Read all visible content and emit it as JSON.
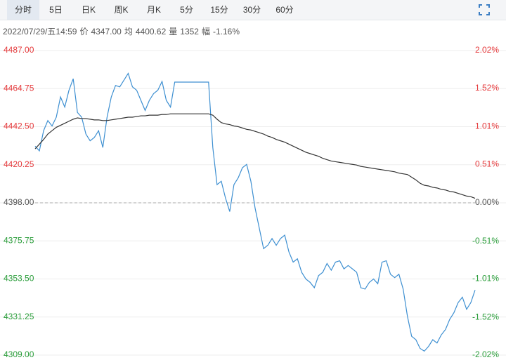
{
  "toolbar": {
    "tabs": [
      "分时",
      "5日",
      "日K",
      "周K",
      "月K",
      "5分",
      "15分",
      "30分",
      "60分"
    ],
    "selected": 0
  },
  "info": {
    "time": "2022/07/29/五14:59",
    "price_label": "价",
    "price": "4347.00",
    "avg_label": "均",
    "avg": "4400.62",
    "volume_label": "量",
    "volume": 1352,
    "range_label": "幅",
    "range": "-1.16%"
  },
  "chart_data": {
    "type": "line",
    "ylim": [
      4309,
      4487
    ],
    "yticks": [
      {
        "value": 4487,
        "label": "4487.00"
      },
      {
        "value": 4464.75,
        "label": "4464.75"
      },
      {
        "value": 4442.5,
        "label": "4442.50"
      },
      {
        "value": 4420.25,
        "label": "4420.25"
      },
      {
        "value": 4398,
        "label": "4398.00"
      },
      {
        "value": 4375.75,
        "label": "4375.75"
      },
      {
        "value": 4353.5,
        "label": "4353.50"
      },
      {
        "value": 4331.25,
        "label": "4331.25"
      },
      {
        "value": 4309,
        "label": "4309.00"
      }
    ],
    "y2lim": [
      -2.02,
      2.02
    ],
    "y2ticks": [
      {
        "value": 2.02,
        "label": "2.02%"
      },
      {
        "value": 1.52,
        "label": "1.52%"
      },
      {
        "value": 1.01,
        "label": "1.01%"
      },
      {
        "value": 0.51,
        "label": "0.51%"
      },
      {
        "value": 0,
        "label": "0.00%"
      },
      {
        "value": -0.51,
        "label": "-0.51%"
      },
      {
        "value": -1.01,
        "label": "-1.01%"
      },
      {
        "value": -1.52,
        "label": "-1.52%"
      },
      {
        "value": -2.02,
        "label": "-2.02%"
      }
    ],
    "reference_line": 4398,
    "up_color": "#e5393b",
    "down_color": "#2a9d3a",
    "flat_color": "#555555",
    "grid": true,
    "series": [
      {
        "color": "#3d8fd1",
        "values": [
          4431.1,
          4428.34,
          4440.16,
          4446.07,
          4442.92,
          4448.04,
          4459.86,
          4453.95,
          4463.8,
          4470.5,
          4450.8,
          4448.04,
          4438.19,
          4434.25,
          4436.22,
          4440.16,
          4430.31,
          4448.04,
          4459.86,
          4466.56,
          4465.77,
          4469.71,
          4473.65,
          4465.77,
          4463.8,
          4457.89,
          4451.98,
          4457.89,
          4461.83,
          4463.8,
          4468.92,
          4457.89,
          4453.95,
          4468.53,
          4468.53,
          4468.53,
          4468.53,
          4468.53,
          4468.53,
          4468.53,
          4468.53,
          4468.53,
          4430.31,
          4408.64,
          4410.61,
          4400.76,
          4392.88,
          4408.64,
          4412.58,
          4418.49,
          4420.46,
          4410.61,
          4394.85,
          4383.03,
          4371.21,
          4373.18,
          4377.12,
          4373.18,
          4377.12,
          4379.09,
          4369.24,
          4363.33,
          4365.3,
          4357.42,
          4353.48,
          4351.51,
          4348.36,
          4355.45,
          4357.42,
          4362.54,
          4358.6,
          4363.33,
          4364.12,
          4359.39,
          4361.36,
          4359.39,
          4357.42,
          4348.36,
          4347.57,
          4351.51,
          4353.48,
          4350.72,
          4363.33,
          4364.12,
          4356.24,
          4354.27,
          4356.24,
          4347.57,
          4331.81,
          4319.99,
          4318.02,
          4312.9,
          4311.32,
          4314.08,
          4318.02,
          4316.05,
          4320.78,
          4323.93,
          4329.84,
          4333.78,
          4339.69,
          4342.84,
          4335.75,
          4339.69,
          4347.0
        ]
      },
      {
        "color": "#333333",
        "values": [
          4429.52,
          4432.28,
          4435.04,
          4438.19,
          4440.16,
          4442.13,
          4443.31,
          4444.49,
          4445.67,
          4446.86,
          4447.64,
          4447.25,
          4447.25,
          4446.86,
          4446.46,
          4446.46,
          4446.07,
          4446.07,
          4446.46,
          4446.86,
          4447.25,
          4447.64,
          4448.04,
          4448.04,
          4448.43,
          4448.83,
          4448.83,
          4449.22,
          4449.22,
          4449.22,
          4449.61,
          4449.61,
          4450.01,
          4450.01,
          4450.01,
          4450.01,
          4450.01,
          4450.01,
          4450.01,
          4450.01,
          4450.01,
          4450.01,
          4449.22,
          4446.86,
          4444.89,
          4444.1,
          4443.7,
          4442.92,
          4442.52,
          4441.73,
          4440.95,
          4440.55,
          4439.76,
          4438.98,
          4438.19,
          4437.01,
          4436.22,
          4435.04,
          4434.25,
          4433.46,
          4432.28,
          4431.1,
          4429.91,
          4428.73,
          4427.55,
          4426.76,
          4425.97,
          4425.19,
          4424.0,
          4423.22,
          4422.43,
          4422.03,
          4421.64,
          4421.25,
          4420.85,
          4420.46,
          4420.06,
          4419.28,
          4418.88,
          4418.49,
          4418.09,
          4417.7,
          4417.31,
          4416.91,
          4416.52,
          4416.12,
          4415.34,
          4414.94,
          4414.55,
          4412.97,
          4411.4,
          4409.43,
          4408.24,
          4407.85,
          4407.06,
          4406.67,
          4405.88,
          4405.49,
          4404.7,
          4404.3,
          4403.52,
          4402.73,
          4401.94,
          4401.55,
          4400.62
        ]
      }
    ]
  }
}
